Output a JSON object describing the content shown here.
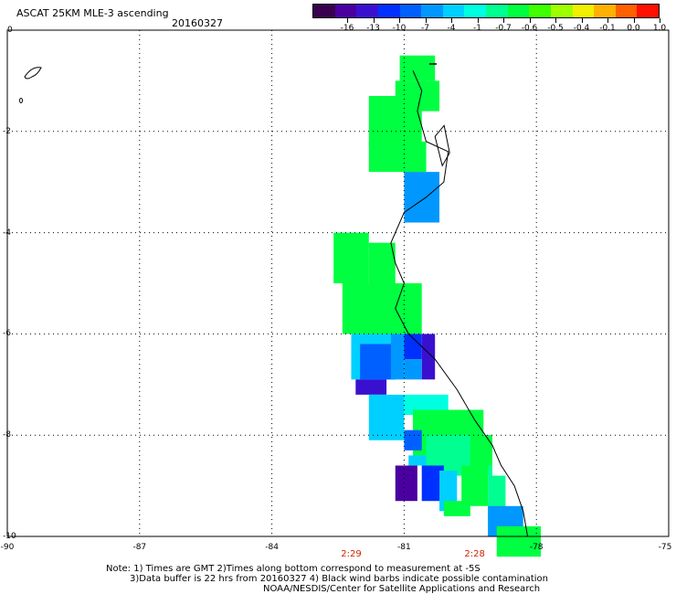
{
  "header": {
    "title": "ASCAT 25KM MLE-3 ascending",
    "date": "20160327"
  },
  "colorbar": {
    "colors": [
      "#3a0050",
      "#4a00a0",
      "#3a10d0",
      "#0030ff",
      "#0060ff",
      "#0098ff",
      "#00d0ff",
      "#00ffe0",
      "#00ff90",
      "#00ff40",
      "#40ff00",
      "#a0ff00",
      "#f0f000",
      "#ffb000",
      "#ff6000",
      "#ff1000"
    ],
    "labels": [
      "-16",
      "-13",
      "-10",
      "-7",
      "-4",
      "-1",
      "-0.7",
      "-0.6",
      "-0.5",
      "-0.4",
      "-0.1",
      "0.0",
      "1.0"
    ]
  },
  "axes": {
    "y_labels": [
      "0",
      "-2",
      "-4",
      "-6",
      "-8",
      "-10"
    ],
    "x_labels": [
      "-90",
      "-87",
      "-84",
      "-81",
      "-78",
      "-75"
    ]
  },
  "times": [
    {
      "label": "2:29",
      "lon": -82.2
    },
    {
      "label": "2:28",
      "lon": -79.4
    }
  ],
  "notes": [
    "Note: 1) Times are GMT 2)Times along bottom correspond to measurement at -5S",
    "3)Data buffer is 22 hrs from 20160327 4) Black wind barbs indicate possible contamination",
    "NOAA/NESDIS/Center for Satellite Applications and Research"
  ],
  "map": {
    "lon_range": [
      -90,
      -75
    ],
    "lat_range": [
      0,
      -10
    ],
    "cells": [
      {
        "lon": -81.1,
        "lat": -0.5,
        "w": 0.8,
        "h": 0.5,
        "c": "#00ff40"
      },
      {
        "lon": -81.2,
        "lat": -1.0,
        "w": 1.0,
        "h": 0.6,
        "c": "#00ff40"
      },
      {
        "lon": -81.3,
        "lat": -1.3,
        "w": 0.3,
        "h": 0.3,
        "c": "#00d0ff"
      },
      {
        "lon": -81.8,
        "lat": -1.3,
        "w": 1.2,
        "h": 1.0,
        "c": "#00ff40"
      },
      {
        "lon": -81.8,
        "lat": -2.2,
        "w": 1.3,
        "h": 0.6,
        "c": "#00ff40"
      },
      {
        "lon": -81.0,
        "lat": -2.8,
        "w": 0.8,
        "h": 1.0,
        "c": "#0098ff"
      },
      {
        "lon": -82.6,
        "lat": -4.0,
        "w": 0.8,
        "h": 1.0,
        "c": "#00ff40"
      },
      {
        "lon": -81.8,
        "lat": -4.2,
        "w": 0.6,
        "h": 1.0,
        "c": "#00ff40"
      },
      {
        "lon": -82.4,
        "lat": -5.0,
        "w": 1.8,
        "h": 1.0,
        "c": "#00ff40"
      },
      {
        "lon": -81.9,
        "lat": -5.8,
        "w": 0.8,
        "h": 0.2,
        "c": "#00ff40"
      },
      {
        "lon": -82.2,
        "lat": -6.0,
        "w": 1.0,
        "h": 0.9,
        "c": "#00d0ff"
      },
      {
        "lon": -82.0,
        "lat": -6.2,
        "w": 0.8,
        "h": 0.7,
        "c": "#0060ff"
      },
      {
        "lon": -82.1,
        "lat": -6.9,
        "w": 0.7,
        "h": 0.3,
        "c": "#3a10d0"
      },
      {
        "lon": -81.3,
        "lat": -6.0,
        "w": 0.3,
        "h": 0.9,
        "c": "#0098ff"
      },
      {
        "lon": -81.0,
        "lat": -6.0,
        "w": 0.4,
        "h": 0.5,
        "c": "#0030ff"
      },
      {
        "lon": -80.6,
        "lat": -6.0,
        "w": 0.3,
        "h": 0.9,
        "c": "#3a10d0"
      },
      {
        "lon": -81.0,
        "lat": -6.5,
        "w": 0.4,
        "h": 0.4,
        "c": "#0098ff"
      },
      {
        "lon": -81.8,
        "lat": -7.2,
        "w": 0.8,
        "h": 0.9,
        "c": "#00d0ff"
      },
      {
        "lon": -81.0,
        "lat": -7.2,
        "w": 1.0,
        "h": 0.4,
        "c": "#00ffe0"
      },
      {
        "lon": -80.8,
        "lat": -7.5,
        "w": 1.6,
        "h": 1.0,
        "c": "#00ff40"
      },
      {
        "lon": -81.0,
        "lat": -7.9,
        "w": 0.4,
        "h": 0.4,
        "c": "#0060ff"
      },
      {
        "lon": -80.9,
        "lat": -8.4,
        "w": 0.6,
        "h": 0.2,
        "c": "#00d0ff"
      },
      {
        "lon": -80.5,
        "lat": -8.0,
        "w": 1.5,
        "h": 0.8,
        "c": "#00ff90"
      },
      {
        "lon": -79.5,
        "lat": -8.0,
        "w": 0.5,
        "h": 0.6,
        "c": "#00ff40"
      },
      {
        "lon": -81.2,
        "lat": -8.6,
        "w": 0.5,
        "h": 0.7,
        "c": "#4a00a0"
      },
      {
        "lon": -80.6,
        "lat": -8.6,
        "w": 0.5,
        "h": 0.7,
        "c": "#0030ff"
      },
      {
        "lon": -80.2,
        "lat": -8.7,
        "w": 0.4,
        "h": 0.8,
        "c": "#00d0ff"
      },
      {
        "lon": -79.7,
        "lat": -8.6,
        "w": 0.6,
        "h": 0.8,
        "c": "#00ff40"
      },
      {
        "lon": -79.1,
        "lat": -8.8,
        "w": 0.4,
        "h": 0.8,
        "c": "#00ff90"
      },
      {
        "lon": -80.1,
        "lat": -9.3,
        "w": 0.6,
        "h": 0.3,
        "c": "#00ff40"
      },
      {
        "lon": -79.1,
        "lat": -9.4,
        "w": 0.8,
        "h": 0.6,
        "c": "#0098ff"
      },
      {
        "lon": -78.9,
        "lat": -9.8,
        "w": 1.0,
        "h": 0.6,
        "c": "#00ff40"
      }
    ],
    "coast": [
      [
        -80.8,
        -0.8
      ],
      [
        -80.6,
        -1.2
      ],
      [
        -80.7,
        -1.6
      ],
      [
        -80.5,
        -2.2
      ],
      [
        -80.0,
        -2.4
      ],
      [
        -80.1,
        -3.0
      ],
      [
        -80.5,
        -3.3
      ],
      [
        -81.0,
        -3.6
      ],
      [
        -81.3,
        -4.2
      ],
      [
        -81.2,
        -4.6
      ],
      [
        -81.0,
        -5.0
      ],
      [
        -81.2,
        -5.5
      ],
      [
        -80.9,
        -6.0
      ],
      [
        -80.3,
        -6.5
      ],
      [
        -79.8,
        -7.1
      ],
      [
        -79.4,
        -7.7
      ],
      [
        -79.0,
        -8.2
      ],
      [
        -78.8,
        -8.6
      ],
      [
        -78.5,
        -9.0
      ],
      [
        -78.3,
        -9.5
      ],
      [
        -78.2,
        -10.0
      ]
    ]
  }
}
